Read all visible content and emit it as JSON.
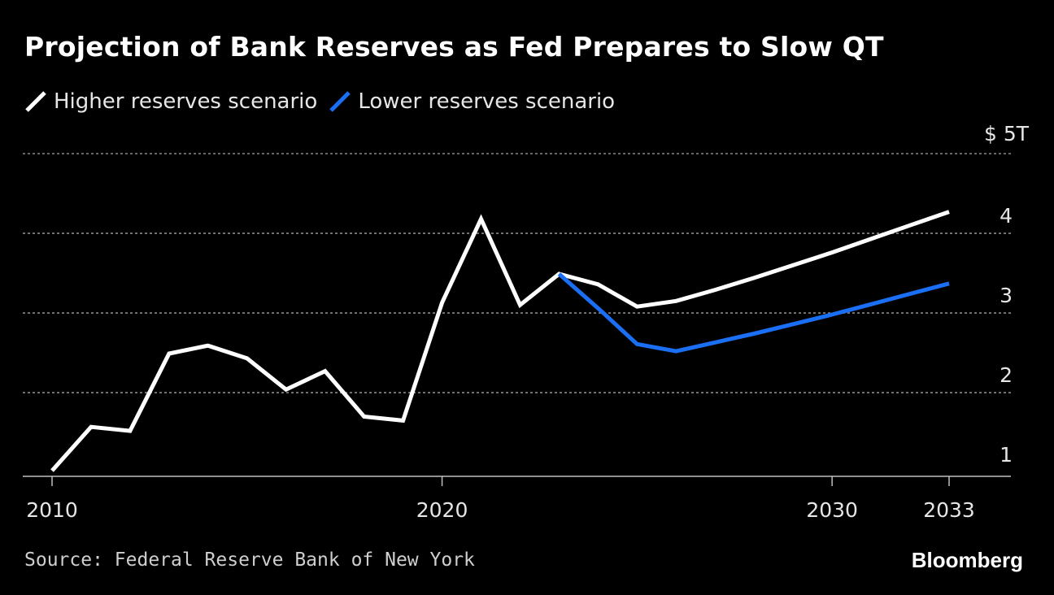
{
  "chart_data": {
    "type": "line",
    "title": "Projection of Bank Reserves as Fed Prepares to Slow QT",
    "xlabel": "",
    "ylabel": "",
    "y_unit_label": "$ 5T",
    "ylim": [
      0.95,
      5
    ],
    "y_ticks": [
      {
        "value": 1,
        "label": "1"
      },
      {
        "value": 2,
        "label": "2"
      },
      {
        "value": 3,
        "label": "3"
      },
      {
        "value": 4,
        "label": "4"
      }
    ],
    "x_ticks": [
      {
        "value": 2010,
        "label": "2010"
      },
      {
        "value": 2020,
        "label": "2020"
      },
      {
        "value": 2030,
        "label": "2030"
      },
      {
        "value": 2033,
        "label": "2033"
      }
    ],
    "xlim": [
      2009.3,
      2033.7
    ],
    "grid": "horizontal dotted",
    "legend_position": "top-left",
    "series": [
      {
        "name": "Higher reserves scenario",
        "color": "#ffffff",
        "x": [
          2010,
          2011,
          2012,
          2013,
          2014,
          2015,
          2016,
          2017,
          2018,
          2019,
          2020,
          2021,
          2022,
          2023,
          2024,
          2025,
          2026,
          2027,
          2028,
          2029,
          2030,
          2031,
          2032,
          2033
        ],
        "values": [
          1.02,
          1.57,
          1.52,
          2.49,
          2.59,
          2.43,
          2.04,
          2.27,
          1.7,
          1.65,
          3.13,
          4.18,
          3.1,
          3.49,
          3.36,
          3.08,
          3.15,
          3.29,
          3.44,
          3.6,
          3.76,
          3.93,
          4.1,
          4.27
        ]
      },
      {
        "name": "Lower reserves scenario",
        "color": "#1a6ff5",
        "x": [
          2023,
          2024,
          2025,
          2026,
          2027,
          2028,
          2029,
          2030,
          2031,
          2032,
          2033
        ],
        "values": [
          3.49,
          3.06,
          2.61,
          2.52,
          2.63,
          2.74,
          2.86,
          2.98,
          3.11,
          3.24,
          3.37
        ]
      }
    ]
  },
  "legend": {
    "items": [
      {
        "label": "Higher reserves scenario",
        "color": "#ffffff"
      },
      {
        "label": "Lower reserves scenario",
        "color": "#1a6ff5"
      }
    ]
  },
  "footer": {
    "source": "Source: Federal Reserve Bank of New York",
    "brand": "Bloomberg"
  }
}
